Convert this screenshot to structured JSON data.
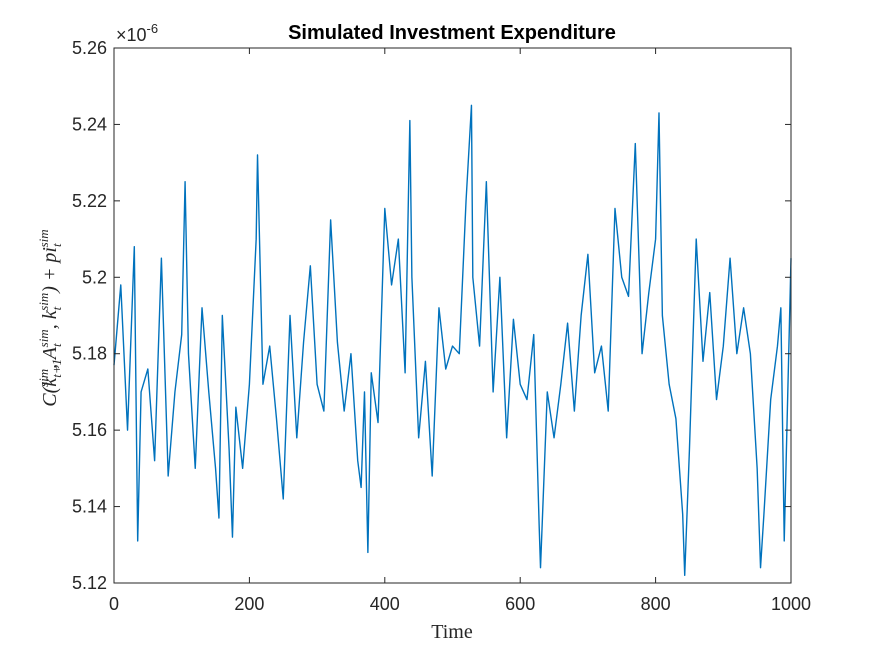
{
  "chart_data": {
    "type": "line",
    "title": "Simulated Investment Expenditure",
    "xlabel": "Time",
    "ylabel": "C(k_{t+1}^{sim}, A_t^{sim}, k_t^{sim}) + pi_t^{sim}",
    "ylabel_display": {
      "pre": "C(k",
      "sub1": "t+1",
      "sup1": "sim",
      "mid1": ", A",
      "sub2": "t",
      "sup2": "sim",
      "mid2": ", k",
      "sub3": "t",
      "sup3": "sim",
      "mid3": ") + pi",
      "sub4": "t",
      "sup4": "sim"
    },
    "y_exponent": {
      "base": "×10",
      "power": "-6"
    },
    "xlim": [
      0,
      1000
    ],
    "ylim": [
      5.12,
      5.26
    ],
    "xticks": [
      0,
      200,
      400,
      600,
      800,
      1000
    ],
    "xtick_labels": [
      "0",
      "200",
      "400",
      "600",
      "800",
      "1000"
    ],
    "yticks": [
      5.12,
      5.14,
      5.16,
      5.18,
      5.2,
      5.22,
      5.24,
      5.26
    ],
    "ytick_labels": [
      "5.12",
      "5.14",
      "5.16",
      "5.18",
      "5.2",
      "5.22",
      "5.24",
      "5.26"
    ],
    "grid": false,
    "line_color": "#0072BD",
    "series": [
      {
        "x": [
          0,
          10,
          20,
          30,
          35,
          40,
          50,
          60,
          70,
          80,
          90,
          100,
          105,
          110,
          120,
          130,
          140,
          150,
          155,
          160,
          170,
          175,
          180,
          190,
          200,
          210,
          212,
          220,
          230,
          240,
          250,
          260,
          270,
          280,
          290,
          300,
          310,
          320,
          330,
          340,
          350,
          360,
          365,
          370,
          375,
          380,
          390,
          400,
          410,
          420,
          430,
          437,
          440,
          450,
          460,
          470,
          480,
          490,
          500,
          510,
          520,
          528,
          530,
          540,
          550,
          560,
          570,
          580,
          590,
          600,
          610,
          620,
          628,
          630,
          640,
          650,
          660,
          670,
          680,
          690,
          700,
          710,
          720,
          730,
          740,
          750,
          760,
          770,
          780,
          790,
          800,
          805,
          810,
          820,
          830,
          840,
          843,
          850,
          860,
          870,
          880,
          890,
          900,
          910,
          920,
          930,
          940,
          950,
          955,
          960,
          970,
          980,
          985,
          990,
          1000
        ],
        "y": [
          5.177,
          5.198,
          5.16,
          5.208,
          5.131,
          5.17,
          5.176,
          5.152,
          5.205,
          5.148,
          5.17,
          5.185,
          5.225,
          5.18,
          5.15,
          5.192,
          5.17,
          5.15,
          5.137,
          5.19,
          5.155,
          5.132,
          5.166,
          5.15,
          5.172,
          5.21,
          5.232,
          5.172,
          5.182,
          5.163,
          5.142,
          5.19,
          5.158,
          5.183,
          5.203,
          5.172,
          5.165,
          5.215,
          5.183,
          5.165,
          5.18,
          5.152,
          5.145,
          5.17,
          5.128,
          5.175,
          5.162,
          5.218,
          5.198,
          5.21,
          5.175,
          5.241,
          5.2,
          5.158,
          5.178,
          5.148,
          5.192,
          5.176,
          5.182,
          5.18,
          5.22,
          5.245,
          5.2,
          5.182,
          5.225,
          5.17,
          5.2,
          5.158,
          5.189,
          5.172,
          5.168,
          5.185,
          5.135,
          5.124,
          5.17,
          5.158,
          5.172,
          5.188,
          5.165,
          5.19,
          5.206,
          5.175,
          5.182,
          5.165,
          5.218,
          5.2,
          5.195,
          5.235,
          5.18,
          5.196,
          5.21,
          5.243,
          5.19,
          5.172,
          5.163,
          5.138,
          5.122,
          5.155,
          5.21,
          5.178,
          5.196,
          5.168,
          5.182,
          5.205,
          5.18,
          5.192,
          5.18,
          5.15,
          5.124,
          5.138,
          5.168,
          5.182,
          5.192,
          5.131,
          5.205
        ]
      }
    ]
  }
}
